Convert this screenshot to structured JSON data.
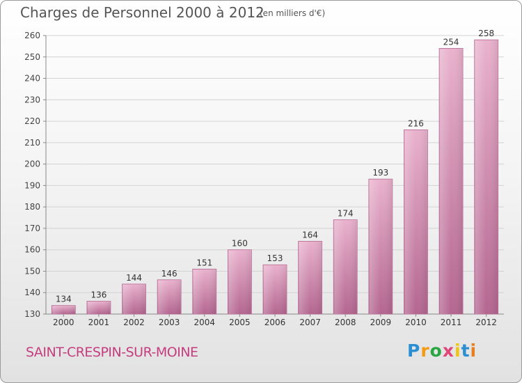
{
  "title": "Charges de Personnel 2000 à 2012",
  "subtitle": "(en milliers d'€)",
  "city": "SAINT-CRESPIN-SUR-MOINE",
  "logo": {
    "letters": [
      "P",
      "r",
      "o",
      "x",
      "i",
      "t",
      "i"
    ],
    "colors": [
      "#2b8fd1",
      "#f39c12",
      "#27a641",
      "#e0457b",
      "#f1c40f",
      "#2b8fd1",
      "#e67e22"
    ]
  },
  "colors": {
    "bar": "#c9789f",
    "bar_light": "#e7b1cc",
    "city": "#c53d7e"
  },
  "chart_data": {
    "type": "bar",
    "categories": [
      "2000",
      "2001",
      "2002",
      "2003",
      "2004",
      "2005",
      "2006",
      "2007",
      "2008",
      "2009",
      "2010",
      "2011",
      "2012"
    ],
    "values": [
      134,
      136,
      144,
      146,
      151,
      160,
      153,
      164,
      174,
      193,
      216,
      254,
      258
    ],
    "ylim": [
      130,
      260
    ],
    "yticks": [
      130,
      140,
      150,
      160,
      170,
      180,
      190,
      200,
      210,
      220,
      230,
      240,
      250,
      260
    ],
    "grid": true,
    "xlabel": "",
    "ylabel": ""
  }
}
